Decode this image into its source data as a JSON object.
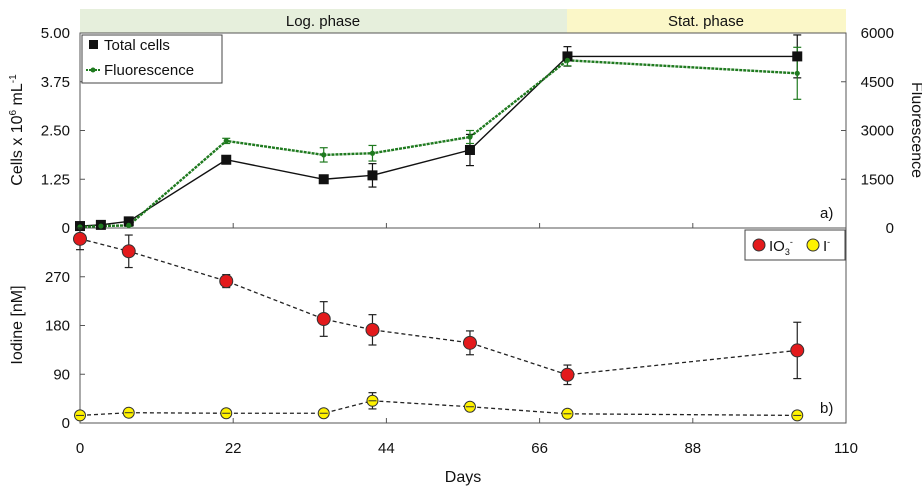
{
  "phases": [
    {
      "label": "Log. phase",
      "x_start": 0,
      "x_end": 70
    },
    {
      "label": "Stat. phase",
      "x_start": 70,
      "x_end": 110
    }
  ],
  "colors": {
    "total_cells": "#111111",
    "fluorescence": "#1f7a1f",
    "iodate": "#e31a1c",
    "iodide": "#fff200",
    "log_phase_band": "#e6efdc",
    "stat_phase_band": "#fbf7c8"
  },
  "chart_data": [
    {
      "panel_tag": "a)",
      "type": "line",
      "xlim": [
        0,
        110
      ],
      "xticks": [
        0,
        22,
        44,
        66,
        88,
        110
      ],
      "ylim": [
        0,
        5.0
      ],
      "yticks": [
        "0",
        "1.25",
        "2.50",
        "3.75",
        "5.00"
      ],
      "ylabel_parts": [
        "Cells x 10",
        "6",
        " mL",
        "-1"
      ],
      "ylim_right": [
        0,
        6000
      ],
      "yticks_right": [
        "0",
        "1500",
        "3000",
        "4500",
        "6000"
      ],
      "ylabel_right": "Fluorescence",
      "legend": "top-left",
      "series": [
        {
          "name": "Total cells",
          "axis": "left",
          "marker": "square",
          "x": [
            0,
            3,
            7,
            21,
            35,
            42,
            56,
            70,
            103
          ],
          "y": [
            0.05,
            0.08,
            0.17,
            1.75,
            1.25,
            1.35,
            2.0,
            4.4,
            4.4
          ],
          "err": [
            0.02,
            0.03,
            0.04,
            0.08,
            0.1,
            0.3,
            0.4,
            0.25,
            0.55
          ]
        },
        {
          "name": "Fluorescence",
          "axis": "right",
          "marker": "dot",
          "x": [
            0,
            3,
            7,
            21,
            35,
            42,
            56,
            70,
            103
          ],
          "y": [
            30,
            60,
            80,
            2680,
            2250,
            2300,
            2800,
            5160,
            4760
          ],
          "err": [
            20,
            20,
            30,
            80,
            220,
            240,
            200,
            170,
            800
          ]
        }
      ]
    },
    {
      "panel_tag": "b)",
      "type": "line",
      "xlim": [
        0,
        110
      ],
      "xticks": [
        "0",
        "22",
        "44",
        "66",
        "88",
        "110"
      ],
      "xlabel": "Days",
      "ylim": [
        0,
        360
      ],
      "yticks": [
        "0",
        "90",
        "180",
        "270"
      ],
      "ylabel": "Iodine [nM]",
      "legend": "top-right",
      "series": [
        {
          "name_parts": [
            "IO",
            "3",
            "-"
          ],
          "marker": "circle",
          "x": [
            0,
            7,
            21,
            35,
            42,
            56,
            70,
            103
          ],
          "y": [
            340,
            317,
            262,
            192,
            172,
            148,
            89,
            134
          ],
          "err": [
            20,
            30,
            12,
            32,
            28,
            22,
            18,
            52
          ]
        },
        {
          "name_parts": [
            "I",
            "-"
          ],
          "marker": "circle",
          "x": [
            0,
            7,
            21,
            35,
            42,
            56,
            70,
            103
          ],
          "y": [
            14,
            19,
            18,
            18,
            41,
            30,
            17,
            14
          ],
          "err": [
            3,
            3,
            3,
            3,
            15,
            5,
            3,
            3
          ]
        }
      ]
    }
  ]
}
